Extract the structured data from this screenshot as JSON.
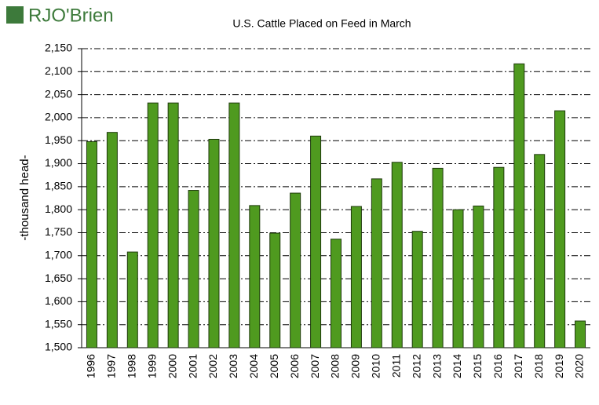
{
  "logo": "RJO'Brien",
  "chart_data": {
    "type": "bar",
    "title": "U.S. Cattle Placed on Feed in March",
    "y_label": "-thousand head-",
    "categories": [
      "1996",
      "1997",
      "1998",
      "1999",
      "2000",
      "2001",
      "2002",
      "2003",
      "2004",
      "2005",
      "2006",
      "2007",
      "2008",
      "2009",
      "2010",
      "2011",
      "2012",
      "2013",
      "2014",
      "2015",
      "2016",
      "2017",
      "2018",
      "2019",
      "2020"
    ],
    "values": [
      1948,
      1968,
      1708,
      2032,
      2032,
      1842,
      1953,
      2032,
      1809,
      1749,
      1836,
      1960,
      1736,
      1807,
      1867,
      1903,
      1753,
      1890,
      1800,
      1808,
      1892,
      2117,
      1920,
      2015,
      1558
    ],
    "color": "#4f9a1f",
    "ylim": [
      1500,
      2150
    ],
    "yticks": [
      {
        "value": 1500,
        "label": "1,500"
      },
      {
        "value": 1550,
        "label": "1,550"
      },
      {
        "value": 1600,
        "label": "1,600"
      },
      {
        "value": 1650,
        "label": "1,650"
      },
      {
        "value": 1700,
        "label": "1,700"
      },
      {
        "value": 1750,
        "label": "1,750"
      },
      {
        "value": 1800,
        "label": "1,800"
      },
      {
        "value": 1850,
        "label": "1,850"
      },
      {
        "value": 1900,
        "label": "1,900"
      },
      {
        "value": 1950,
        "label": "1,950"
      },
      {
        "value": 2000,
        "label": "2,000"
      },
      {
        "value": 2050,
        "label": "2,050"
      },
      {
        "value": 2100,
        "label": "2,100"
      },
      {
        "value": 2150,
        "label": "2,150"
      }
    ],
    "grid": true
  }
}
